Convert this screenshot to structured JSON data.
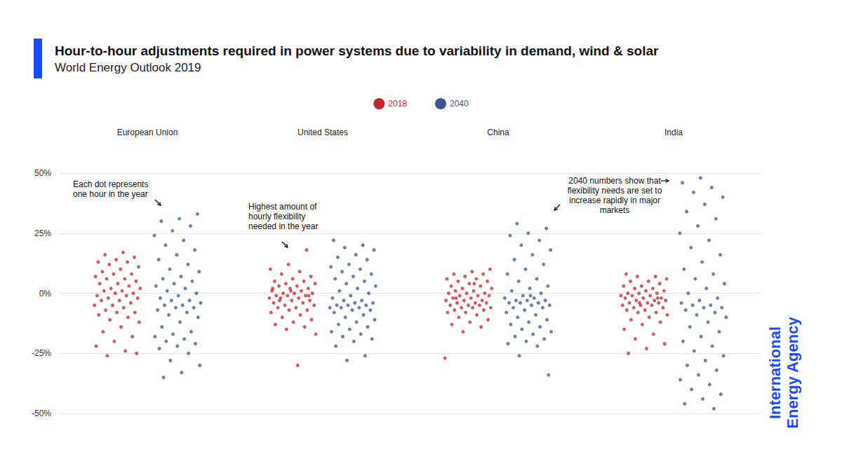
{
  "chart_data": {
    "type": "scatter",
    "title": "Hour-to-hour adjustments required in power systems due to variability in demand, wind & solar",
    "subtitle": "World Energy Outlook 2019",
    "categories": [
      "European Union",
      "United States",
      "China",
      "India"
    ],
    "series": [
      {
        "name": "2018",
        "color": "#c1272d",
        "values": [
          [
            17,
            16,
            15,
            14,
            13,
            13,
            12,
            11,
            10,
            9,
            8,
            8,
            7,
            6,
            6,
            5,
            4,
            4,
            3,
            2,
            2,
            1,
            1,
            0,
            0,
            -1,
            -1,
            -2,
            -2,
            -3,
            -3,
            -4,
            -5,
            -5,
            -6,
            -7,
            -8,
            -8,
            -9,
            -10,
            -11,
            -12,
            -14,
            -16,
            -18,
            -20,
            -22,
            -24,
            -26,
            -25
          ],
          [
            18,
            12,
            10,
            9,
            8,
            7,
            6,
            5,
            5,
            4,
            4,
            3,
            3,
            2,
            2,
            1,
            1,
            0,
            0,
            0,
            -1,
            -1,
            -1,
            -2,
            -2,
            -2,
            -3,
            -3,
            -4,
            -4,
            -5,
            -5,
            -6,
            -6,
            -7,
            -7,
            -8,
            -9,
            -10,
            -11,
            -12,
            -13,
            -14,
            -15,
            -17,
            -30,
            -3,
            -1,
            1,
            2
          ],
          [
            10,
            9,
            8,
            8,
            7,
            6,
            6,
            5,
            5,
            4,
            3,
            3,
            2,
            2,
            1,
            1,
            0,
            0,
            0,
            -1,
            -1,
            -1,
            -2,
            -2,
            -3,
            -3,
            -3,
            -4,
            -4,
            -4,
            -5,
            -5,
            -5,
            -6,
            -6,
            -6,
            -7,
            -7,
            -8,
            -8,
            -9,
            -10,
            -11,
            -12,
            -13,
            -14,
            -16,
            -27,
            4,
            -2
          ],
          [
            8,
            7,
            7,
            6,
            5,
            5,
            4,
            3,
            3,
            2,
            2,
            1,
            1,
            0,
            0,
            0,
            -1,
            -1,
            -1,
            -2,
            -2,
            -2,
            -3,
            -3,
            -3,
            -4,
            -4,
            -4,
            -5,
            -5,
            -5,
            -6,
            -6,
            -7,
            -7,
            -8,
            -8,
            -9,
            -10,
            -11,
            -12,
            -13,
            -15,
            -17,
            -19,
            -21,
            -23,
            -25,
            -2,
            -4
          ]
        ]
      },
      {
        "name": "2040",
        "color": "#3b5690",
        "values": [
          [
            33,
            31,
            30,
            28,
            26,
            24,
            22,
            20,
            18,
            16,
            14,
            12,
            10,
            9,
            7,
            6,
            5,
            4,
            3,
            2,
            1,
            0,
            -1,
            -2,
            -3,
            -3,
            -4,
            -5,
            -5,
            -6,
            -6,
            -7,
            -8,
            -9,
            -10,
            -12,
            -14,
            -16,
            -17,
            -18,
            -19,
            -20,
            -21,
            -22,
            -23,
            -25,
            -28,
            -30,
            -33,
            -35
          ],
          [
            22,
            20,
            19,
            18,
            16,
            15,
            14,
            12,
            11,
            10,
            9,
            8,
            7,
            6,
            5,
            4,
            3,
            2,
            1,
            0,
            -1,
            -2,
            -3,
            -3,
            -4,
            -4,
            -5,
            -5,
            -5,
            -6,
            -6,
            -6,
            -7,
            -7,
            -8,
            -9,
            -10,
            -11,
            -12,
            -13,
            -14,
            -15,
            -16,
            -17,
            -18,
            -19,
            -20,
            -22,
            -26,
            -28
          ],
          [
            29,
            27,
            25,
            24,
            22,
            20,
            18,
            16,
            14,
            12,
            10,
            8,
            6,
            5,
            3,
            2,
            1,
            0,
            -1,
            -2,
            -2,
            -3,
            -3,
            -3,
            -4,
            -4,
            -4,
            -5,
            -5,
            -6,
            -6,
            -7,
            -8,
            -9,
            -10,
            -11,
            -12,
            -13,
            -14,
            -15,
            -16,
            -17,
            -18,
            -19,
            -20,
            -21,
            -22,
            -26,
            -34,
            -1
          ],
          [
            48,
            46,
            44,
            42,
            40,
            37,
            34,
            31,
            28,
            25,
            22,
            19,
            16,
            13,
            10,
            8,
            6,
            4,
            2,
            0,
            -2,
            -3,
            -4,
            -5,
            -5,
            -6,
            -6,
            -7,
            -8,
            -9,
            -10,
            -12,
            -14,
            -16,
            -18,
            -20,
            -22,
            -24,
            -26,
            -28,
            -30,
            -32,
            -34,
            -36,
            -38,
            -40,
            -42,
            -44,
            -46,
            -48
          ]
        ]
      }
    ],
    "ylim": [
      -50,
      50
    ],
    "yticks": [
      {
        "value": -50,
        "label": "-50%"
      },
      {
        "value": -25,
        "label": "-25%"
      },
      {
        "value": 0,
        "label": "0%"
      },
      {
        "value": 25,
        "label": "25%"
      },
      {
        "value": 50,
        "label": "50%"
      }
    ],
    "grid": true,
    "legend": "top",
    "annotations": [
      "Each dot represents\none hour in the year",
      "Highest amount of\nhourly flexibility\nneeded in the year",
      "2040 numbers show that\nflexibility needs are set to\nincrease rapidly in major\nmarkets"
    ],
    "source": "International\nEnergy Agency"
  }
}
